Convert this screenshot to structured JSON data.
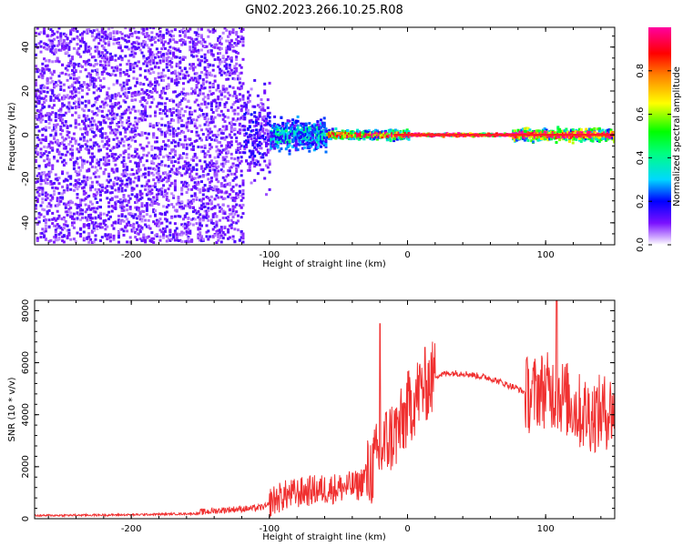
{
  "title": "GN02.2023.266.10.25.R08",
  "chart_data": [
    {
      "type": "heatmap",
      "xlabel": "Height of straight line (km)",
      "ylabel": "Frequency (Hz)",
      "xlim": [
        -270,
        150
      ],
      "ylim": [
        -50,
        49
      ],
      "xticks": [
        -200,
        -100,
        0,
        100
      ],
      "yticks": [
        -40,
        -20,
        0,
        20,
        40
      ],
      "colorbar": {
        "label": "Normalized spectral amplitude",
        "range": [
          0,
          1
        ],
        "ticks": [
          "0.0",
          "0.2",
          "0.4",
          "0.6",
          "0.8"
        ],
        "colormap": [
          "#ffffff",
          "#7a10ff",
          "#0000ff",
          "#00d8ff",
          "#00ff00",
          "#ffff00",
          "#ff8000",
          "#ff0000",
          "#ff00a0"
        ]
      },
      "regions": [
        {
          "x": [
            -270,
            -120
          ],
          "freq_spread": 49,
          "amplitude": 0.1
        },
        {
          "x": [
            -180,
            -60
          ],
          "freq_spread": 12,
          "amplitude": 0.25
        },
        {
          "x": [
            -60,
            0
          ],
          "freq_spread": 3,
          "amplitude": 0.6
        },
        {
          "x": [
            0,
            75
          ],
          "freq_spread": 1,
          "amplitude": 0.9
        },
        {
          "x": [
            75,
            150
          ],
          "freq_spread": 5,
          "amplitude": 0.65
        }
      ]
    },
    {
      "type": "line",
      "xlabel": "Height of straight line (km)",
      "ylabel": "SNR (10 * v/v)",
      "xlim": [
        -270,
        150
      ],
      "ylim": [
        0,
        8400
      ],
      "xticks": [
        -200,
        -100,
        0,
        100
      ],
      "yticks": [
        0,
        2000,
        4000,
        6000,
        8000
      ],
      "series": [
        {
          "color": "#f03030",
          "x": [
            -270,
            -200,
            -150,
            -130,
            -110,
            -100,
            -90,
            -70,
            -50,
            -35,
            -25,
            -15,
            -5,
            0,
            10,
            20,
            30,
            40,
            60,
            70,
            80,
            90,
            95,
            105,
            115,
            125,
            135,
            150
          ],
          "y": [
            120,
            150,
            200,
            300,
            350,
            450,
            700,
            900,
            1000,
            1100,
            2000,
            3000,
            3500,
            4200,
            5000,
            5500,
            5600,
            5600,
            5400,
            5200,
            5000,
            4700,
            5000,
            4900,
            4600,
            4100,
            4000,
            4200
          ]
        }
      ]
    }
  ]
}
